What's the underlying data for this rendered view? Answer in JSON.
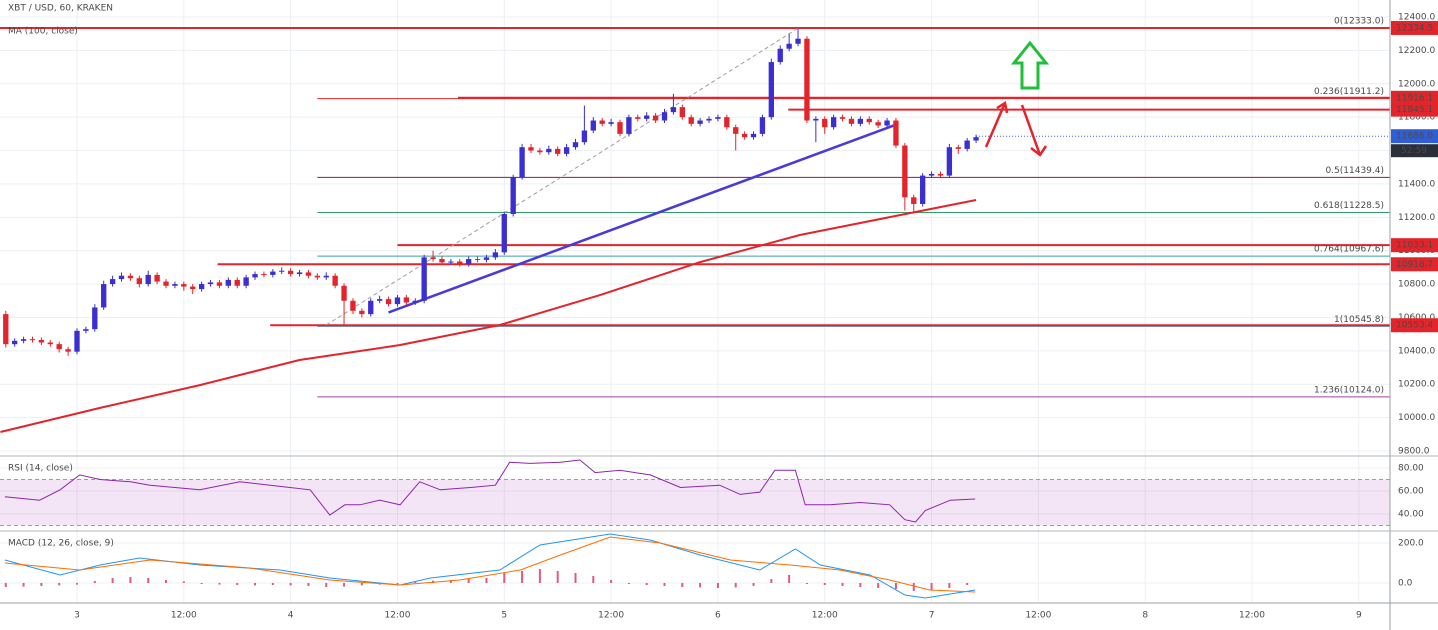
{
  "chart_data": {
    "type": "candlestick",
    "title": "XBT / USD, 60, KRAKEN",
    "ma_label": "MA (100, close)",
    "xlim": [
      -8.65,
      147.5
    ],
    "xticks": [
      {
        "value": 0,
        "label": "3"
      },
      {
        "value": 12,
        "label": "12:00"
      },
      {
        "value": 24,
        "label": "4"
      },
      {
        "value": 36,
        "label": "12:00"
      },
      {
        "value": 48,
        "label": "5"
      },
      {
        "value": 60,
        "label": "12:00"
      },
      {
        "value": 72,
        "label": "6"
      },
      {
        "value": 84,
        "label": "12:00"
      },
      {
        "value": 96,
        "label": "7"
      },
      {
        "value": 108,
        "label": "12:00"
      },
      {
        "value": 120,
        "label": "8"
      },
      {
        "value": 132,
        "label": "12:00"
      },
      {
        "value": 144,
        "label": "9"
      }
    ],
    "ylim": [
      9776,
      12502
    ],
    "yticks": [
      {
        "value": 12400,
        "label": "12400.0"
      },
      {
        "value": 12200,
        "label": "12200.0"
      },
      {
        "value": 12000,
        "label": "12000.0"
      },
      {
        "value": 11800,
        "label": "11800.0"
      },
      {
        "value": 11600,
        "label": "11600.0"
      },
      {
        "value": 11400,
        "label": "11400.0"
      },
      {
        "value": 11200,
        "label": "11200.0"
      },
      {
        "value": 11000,
        "label": "11000.0"
      },
      {
        "value": 10800,
        "label": "10800.0"
      },
      {
        "value": 10600,
        "label": "10600.0"
      },
      {
        "value": 10400,
        "label": "10400.0"
      },
      {
        "value": 10200,
        "label": "10200.0"
      },
      {
        "value": 10000,
        "label": "10000.0"
      },
      {
        "value": 9800,
        "label": "9800.0"
      }
    ],
    "grid": true,
    "up_color": "#3b2fd0",
    "down_color": "#e3242b",
    "candles": [
      [
        -8,
        10620,
        10640,
        10420,
        10440
      ],
      [
        -7,
        10440,
        10475,
        10425,
        10460
      ],
      [
        -6,
        10460,
        10485,
        10445,
        10470
      ],
      [
        -5,
        10470,
        10485,
        10450,
        10465
      ],
      [
        -4,
        10465,
        10480,
        10435,
        10450
      ],
      [
        -3,
        10450,
        10465,
        10425,
        10440
      ],
      [
        -2,
        10440,
        10455,
        10390,
        10410
      ],
      [
        -1,
        10410,
        10425,
        10370,
        10395
      ],
      [
        0,
        10395,
        10535,
        10380,
        10520
      ],
      [
        1,
        10520,
        10545,
        10505,
        10530
      ],
      [
        2,
        10530,
        10680,
        10515,
        10660
      ],
      [
        3,
        10660,
        10820,
        10645,
        10800
      ],
      [
        4,
        10800,
        10850,
        10785,
        10830
      ],
      [
        5,
        10830,
        10870,
        10815,
        10850
      ],
      [
        6,
        10850,
        10865,
        10820,
        10835
      ],
      [
        7,
        10835,
        10850,
        10780,
        10800
      ],
      [
        8,
        10800,
        10880,
        10785,
        10855
      ],
      [
        9,
        10855,
        10870,
        10800,
        10815
      ],
      [
        10,
        10815,
        10830,
        10775,
        10790
      ],
      [
        11,
        10790,
        10815,
        10775,
        10800
      ],
      [
        12,
        10800,
        10815,
        10760,
        10785
      ],
      [
        13,
        10785,
        10800,
        10740,
        10770
      ],
      [
        14,
        10770,
        10815,
        10755,
        10800
      ],
      [
        15,
        10800,
        10825,
        10785,
        10810
      ],
      [
        16,
        10810,
        10825,
        10775,
        10790
      ],
      [
        17,
        10790,
        10840,
        10775,
        10825
      ],
      [
        18,
        10825,
        10840,
        10775,
        10790
      ],
      [
        19,
        10790,
        10855,
        10775,
        10840
      ],
      [
        20,
        10840,
        10875,
        10825,
        10860
      ],
      [
        21,
        10860,
        10875,
        10840,
        10855
      ],
      [
        22,
        10855,
        10890,
        10840,
        10875
      ],
      [
        23,
        10875,
        10900,
        10860,
        10880
      ],
      [
        24,
        10880,
        10895,
        10845,
        10860
      ],
      [
        25,
        10860,
        10885,
        10845,
        10870
      ],
      [
        26,
        10870,
        10885,
        10835,
        10850
      ],
      [
        27,
        10850,
        10865,
        10825,
        10840
      ],
      [
        28,
        10840,
        10870,
        10825,
        10850
      ],
      [
        29,
        10850,
        10865,
        10775,
        10790
      ],
      [
        30,
        10790,
        10805,
        10555,
        10700
      ],
      [
        31,
        10700,
        10715,
        10620,
        10640
      ],
      [
        32,
        10640,
        10655,
        10600,
        10620
      ],
      [
        33,
        10620,
        10715,
        10605,
        10700
      ],
      [
        34,
        10700,
        10730,
        10685,
        10710
      ],
      [
        35,
        10710,
        10725,
        10665,
        10680
      ],
      [
        36,
        10680,
        10735,
        10665,
        10720
      ],
      [
        37,
        10720,
        10735,
        10675,
        10690
      ],
      [
        38,
        10690,
        10715,
        10675,
        10700
      ],
      [
        39,
        10700,
        10975,
        10685,
        10960
      ],
      [
        40,
        10960,
        11000,
        10935,
        10950
      ],
      [
        41,
        10950,
        10965,
        10915,
        10930
      ],
      [
        42,
        10930,
        10950,
        10915,
        10935
      ],
      [
        43,
        10935,
        10950,
        10905,
        10920
      ],
      [
        44,
        10920,
        10965,
        10905,
        10950
      ],
      [
        45,
        10950,
        10965,
        10930,
        10945
      ],
      [
        46,
        10945,
        10975,
        10930,
        10960
      ],
      [
        47,
        10960,
        11010,
        10945,
        10990
      ],
      [
        48,
        10990,
        11235,
        10975,
        11220
      ],
      [
        49,
        11220,
        11455,
        11205,
        11440
      ],
      [
        50,
        11440,
        11640,
        11425,
        11620
      ],
      [
        51,
        11620,
        11640,
        11585,
        11600
      ],
      [
        52,
        11600,
        11615,
        11575,
        11590
      ],
      [
        53,
        11590,
        11630,
        11575,
        11610
      ],
      [
        54,
        11610,
        11625,
        11565,
        11580
      ],
      [
        55,
        11580,
        11640,
        11565,
        11620
      ],
      [
        56,
        11620,
        11670,
        11605,
        11650
      ],
      [
        57,
        11650,
        11870,
        11635,
        11720
      ],
      [
        58,
        11720,
        11800,
        11705,
        11780
      ],
      [
        59,
        11780,
        11795,
        11745,
        11760
      ],
      [
        60,
        11760,
        11790,
        11745,
        11770
      ],
      [
        61,
        11770,
        11785,
        11685,
        11700
      ],
      [
        62,
        11700,
        11815,
        11685,
        11800
      ],
      [
        63,
        11800,
        11815,
        11775,
        11790
      ],
      [
        64,
        11790,
        11830,
        11775,
        11810
      ],
      [
        65,
        11810,
        11825,
        11765,
        11780
      ],
      [
        66,
        11780,
        11850,
        11765,
        11830
      ],
      [
        67,
        11830,
        11940,
        11815,
        11860
      ],
      [
        68,
        11860,
        11875,
        11785,
        11800
      ],
      [
        69,
        11800,
        11815,
        11745,
        11760
      ],
      [
        70,
        11760,
        11795,
        11745,
        11780
      ],
      [
        71,
        11780,
        11805,
        11765,
        11790
      ],
      [
        72,
        11790,
        11815,
        11775,
        11800
      ],
      [
        73,
        11800,
        11815,
        11725,
        11740
      ],
      [
        74,
        11740,
        11755,
        11600,
        11700
      ],
      [
        75,
        11700,
        11715,
        11665,
        11680
      ],
      [
        76,
        11680,
        11715,
        11665,
        11700
      ],
      [
        77,
        11700,
        11815,
        11685,
        11800
      ],
      [
        78,
        11800,
        12150,
        11785,
        12130
      ],
      [
        79,
        12130,
        12230,
        12115,
        12210
      ],
      [
        80,
        12210,
        12300,
        12195,
        12240
      ],
      [
        81,
        12240,
        12333,
        12225,
        12270
      ],
      [
        82,
        12270,
        12285,
        11765,
        11780
      ],
      [
        83,
        11780,
        11805,
        11650,
        11790
      ],
      [
        84,
        11790,
        11805,
        11700,
        11740
      ],
      [
        85,
        11740,
        11815,
        11725,
        11800
      ],
      [
        86,
        11800,
        11815,
        11775,
        11790
      ],
      [
        87,
        11790,
        11805,
        11745,
        11760
      ],
      [
        88,
        11760,
        11805,
        11745,
        11790
      ],
      [
        89,
        11790,
        11805,
        11755,
        11770
      ],
      [
        90,
        11770,
        11785,
        11735,
        11750
      ],
      [
        91,
        11750,
        11795,
        11735,
        11780
      ],
      [
        92,
        11780,
        11795,
        11615,
        11630
      ],
      [
        93,
        11630,
        11645,
        11240,
        11320
      ],
      [
        94,
        11320,
        11335,
        11228,
        11280
      ],
      [
        95,
        11280,
        11465,
        11265,
        11450
      ],
      [
        96,
        11450,
        11475,
        11435,
        11460
      ],
      [
        97,
        11460,
        11475,
        11435,
        11450
      ],
      [
        98,
        11450,
        11640,
        11435,
        11620
      ],
      [
        99,
        11620,
        11635,
        11580,
        11610
      ],
      [
        100,
        11610,
        11675,
        11595,
        11660
      ],
      [
        101,
        11660,
        11695,
        11645,
        11680
      ]
    ],
    "ma": {
      "color": "#e3242b",
      "x": [
        -8.6,
        2.6,
        13.8,
        25,
        36.3,
        47.5,
        58.8,
        70,
        81.2,
        92.5,
        101
      ],
      "values": [
        9914,
        10058,
        10195,
        10345,
        10435,
        10555,
        10735,
        10932,
        11094,
        11214,
        11304
      ]
    },
    "trendlines": [
      {
        "color": "#4b3ad6",
        "points": [
          [
            35,
            10630
          ],
          [
            92,
            11755
          ]
        ]
      },
      {
        "color": "#9e9e9e",
        "dashed": true,
        "points": [
          [
            28,
            10555
          ],
          [
            81,
            12333
          ]
        ]
      }
    ],
    "levels_color": "#e3242b",
    "levels": [
      {
        "value": 12334.5,
        "start": -8.65
      },
      {
        "value": 11916.1,
        "start": 42.8
      },
      {
        "value": 11845.1,
        "start": 79.9
      },
      {
        "value": 11033.1,
        "start": 36
      },
      {
        "value": 10918.7,
        "start": 15.8
      },
      {
        "value": 10553.4,
        "start": 21.7
      }
    ],
    "fib": {
      "start": 27,
      "levels": [
        {
          "value": 12333,
          "label": "0(12333.0)",
          "color": "#9e4a4a"
        },
        {
          "value": 11911.2,
          "label": "0.236(11911.2)",
          "color": "#e3242b"
        },
        {
          "value": 11439.4,
          "label": "0.5(11439.4)",
          "color": "#8b1a3a"
        },
        {
          "value": 11228.5,
          "label": "0.618(11228.5)",
          "color": "#2e9d6a"
        },
        {
          "value": 10967.6,
          "label": "0.764(10967.6)",
          "color": "#3aa3a3"
        },
        {
          "value": 10545.8,
          "label": "1(10545.8)",
          "color": "#5aaed8"
        },
        {
          "value": 10124,
          "label": "1.236(10124.0)",
          "color": "#a040a0"
        }
      ]
    },
    "last_price": {
      "value": 11686,
      "label": "11686.0",
      "countdown": "52:59",
      "color": "#2f5fd8"
    },
    "rsi": {
      "title": "RSI (14, close)",
      "ylim": [
        27.8,
        88.7
      ],
      "yticks": [
        {
          "value": 80,
          "label": "80.00"
        },
        {
          "value": 60,
          "label": "60.00"
        },
        {
          "value": 40,
          "label": "40.00"
        }
      ],
      "band": [
        30,
        70
      ],
      "color": "#8e24aa",
      "x": [
        -8.1,
        -4.2,
        -1.9,
        0.3,
        2.6,
        6,
        8.2,
        13.8,
        18.3,
        22.8,
        26.2,
        28.4,
        30.1,
        31.8,
        34,
        36.3,
        38.5,
        40.8,
        44.2,
        47,
        48.6,
        50.9,
        54.3,
        56.5,
        58.2,
        61,
        64.4,
        67.8,
        72.2,
        74.5,
        76.7,
        78.4,
        80.7,
        81.8,
        84.6,
        88,
        91.3,
        93,
        94.2,
        95.3,
        98.1,
        100.9
      ],
      "values": [
        55,
        52,
        61,
        74,
        70,
        68,
        65,
        61,
        68,
        64,
        61,
        39,
        48,
        48,
        52,
        48,
        68,
        61,
        63,
        65,
        85,
        84,
        85,
        87,
        76,
        78,
        74,
        63,
        65,
        57,
        59,
        78,
        78,
        48,
        48,
        50,
        48,
        35,
        33,
        43,
        52,
        53
      ]
    },
    "macd": {
      "title": "MACD (12, 26, close, 9)",
      "ylim": [
        -85,
        240
      ],
      "yticks": [
        {
          "value": 200,
          "label": "200.0"
        },
        {
          "value": 0,
          "label": "0.0"
        }
      ],
      "macd": {
        "color": "#2196f3",
        "x": [
          -8.1,
          -1.9,
          2.6,
          7,
          13.8,
          22.8,
          28.4,
          36.3,
          39.7,
          47.5,
          52,
          59.9,
          64.4,
          70,
          76.7,
          80.7,
          83.5,
          89.1,
          93,
          95.3,
          100.9
        ],
        "values": [
          115,
          40,
          90,
          125,
          90,
          65,
          25,
          -10,
          25,
          65,
          190,
          245,
          215,
          140,
          65,
          170,
          90,
          40,
          -60,
          -75,
          -35
        ]
      },
      "signal": {
        "color": "#ff6d00",
        "x": [
          -8.1,
          0.3,
          8.2,
          19.4,
          28.4,
          36.3,
          43,
          49.8,
          54.3,
          59.9,
          65.5,
          73.4,
          80.1,
          85.7,
          91.3,
          95.8,
          100.9
        ],
        "values": [
          100,
          65,
          115,
          75,
          15,
          -10,
          15,
          65,
          140,
          230,
          200,
          115,
          90,
          65,
          15,
          -35,
          -45
        ]
      },
      "histogram": {
        "color": "#e05a80",
        "x": [
          -8,
          -6,
          -4,
          -2,
          0,
          2,
          4,
          6,
          8,
          10,
          12,
          14,
          16,
          18,
          20,
          22,
          24,
          26,
          28,
          30,
          32,
          34,
          36,
          38,
          40,
          42,
          44,
          46,
          48,
          50,
          52,
          54,
          56,
          58,
          60,
          62,
          64,
          66,
          68,
          70,
          72,
          74,
          76,
          78,
          80,
          82,
          84,
          86,
          88,
          90,
          92,
          94,
          96,
          98,
          100
        ],
        "values": [
          -20,
          -18,
          -15,
          -12,
          -8,
          10,
          25,
          30,
          25,
          15,
          8,
          -5,
          -8,
          -10,
          -12,
          -10,
          -12,
          -15,
          -20,
          -18,
          -12,
          -8,
          -5,
          5,
          12,
          15,
          20,
          25,
          50,
          60,
          70,
          60,
          50,
          35,
          15,
          -5,
          -10,
          -15,
          -20,
          -22,
          -25,
          -22,
          -15,
          20,
          40,
          -5,
          -10,
          -15,
          -20,
          -25,
          -30,
          -40,
          -35,
          -25,
          -10
        ]
      }
    }
  }
}
